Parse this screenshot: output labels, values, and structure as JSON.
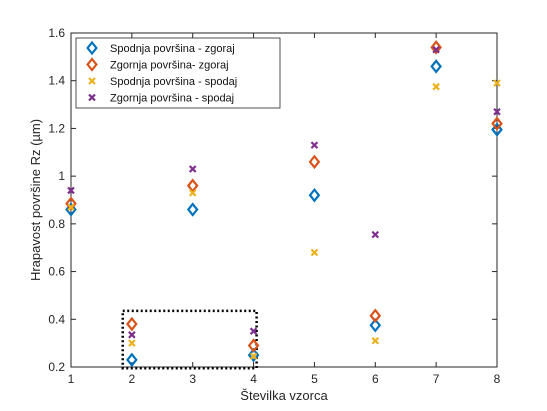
{
  "chart_data": {
    "type": "scatter",
    "xlabel": "Številka vzorca",
    "ylabel": "Hrapavost površine Rz (µm)",
    "xlim": [
      1,
      8
    ],
    "ylim": [
      0.2,
      1.6
    ],
    "xticks": [
      "1",
      "2",
      "3",
      "4",
      "5",
      "6",
      "7",
      "8"
    ],
    "yticks": [
      "0.2",
      "0.4",
      "0.6",
      "0.8",
      "1",
      "1.2",
      "1.4",
      "1.6"
    ],
    "grid": false,
    "legend_position": "top-left",
    "series": [
      {
        "name": "Spodnja površina - zgoraj",
        "marker": "diamond",
        "color": "#0072BD",
        "x": [
          1,
          2,
          3,
          4,
          5,
          6,
          7,
          8
        ],
        "y": [
          0.86,
          0.23,
          0.86,
          0.25,
          0.92,
          0.375,
          1.46,
          1.195
        ]
      },
      {
        "name": "Zgornja površina- zgoraj",
        "marker": "diamond",
        "color": "#D95319",
        "x": [
          1,
          2,
          3,
          4,
          5,
          6,
          7,
          8
        ],
        "y": [
          0.885,
          0.38,
          0.96,
          0.29,
          1.06,
          0.415,
          1.54,
          1.22
        ]
      },
      {
        "name": "Spodnja površina - spodaj",
        "marker": "x",
        "color": "#EDB120",
        "x": [
          1,
          2,
          3,
          4,
          5,
          6,
          7,
          8
        ],
        "y": [
          0.87,
          0.3,
          0.93,
          0.245,
          0.68,
          0.31,
          1.375,
          1.39
        ]
      },
      {
        "name": "Zgornja površina - spodaj",
        "marker": "x",
        "color": "#7E2F8E",
        "x": [
          1,
          2,
          3,
          4,
          5,
          6,
          7,
          8
        ],
        "y": [
          0.94,
          0.335,
          1.03,
          0.35,
          1.13,
          0.755,
          1.53,
          1.27
        ]
      }
    ],
    "annotation": {
      "type": "dotted-rectangle",
      "color": "#000000",
      "x_range": [
        1.85,
        4.05
      ],
      "y_range": [
        0.195,
        0.435
      ]
    }
  }
}
